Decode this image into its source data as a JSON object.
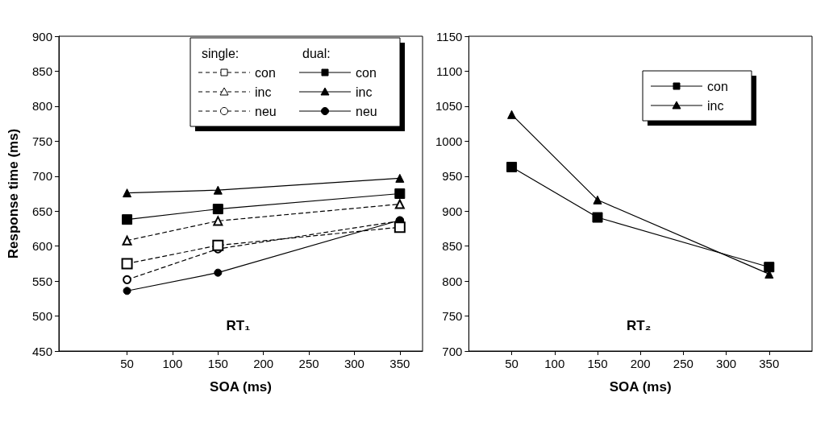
{
  "chart_data": [
    {
      "type": "line",
      "xlabel": "SOA (ms)",
      "ylabel": "Response time (ms)",
      "x": [
        50,
        150,
        350
      ],
      "series": [
        {
          "name": "con",
          "color": "#000000",
          "marker": "square",
          "line_style": "dashed",
          "values": [
            575,
            601,
            627
          ]
        },
        {
          "name": "inc",
          "color": "#000000",
          "marker": "triangle",
          "line_style": "dashed",
          "values": [
            608,
            636,
            660
          ]
        },
        {
          "name": "neu",
          "color": "#000000",
          "marker": "circle",
          "line_style": "dashed",
          "values": [
            552,
            596,
            636
          ]
        },
        {
          "name": "con",
          "color": "#000000",
          "marker": "square",
          "line_style": "solid",
          "values": [
            638,
            653,
            675
          ]
        },
        {
          "name": "inc",
          "color": "#000000",
          "marker": "triangle",
          "line_style": "solid",
          "values": [
            676,
            680,
            697
          ]
        },
        {
          "name": "neu",
          "color": "#000000",
          "marker": "circle",
          "line_style": "solid",
          "values": [
            536,
            562,
            637
          ]
        }
      ],
      "xlim": [
        -25,
        375
      ],
      "xticks": [
        50,
        100,
        150,
        200,
        250,
        300,
        350
      ],
      "ylim": [
        450,
        900
      ],
      "yticks": [
        450,
        500,
        550,
        600,
        650,
        700,
        750,
        800,
        850,
        900
      ],
      "grid": false,
      "legend": "top right",
      "annotations": [
        "RT₁",
        "single:",
        "dual:"
      ]
    },
    {
      "type": "line",
      "xlabel": "SOA (ms)",
      "x": [
        50,
        150,
        350
      ],
      "series": [
        {
          "name": "con",
          "color": "#000000",
          "marker": "square",
          "line_style": "solid",
          "values": [
            963,
            891,
            820
          ]
        },
        {
          "name": "inc",
          "color": "#000000",
          "marker": "triangle",
          "line_style": "solid",
          "values": [
            1038,
            916,
            810
          ]
        }
      ],
      "xlim": [
        0,
        400
      ],
      "xticks": [
        50,
        100,
        150,
        200,
        250,
        300,
        350
      ],
      "ylim": [
        700,
        1150
      ],
      "yticks": [
        700,
        750,
        800,
        850,
        900,
        950,
        1000,
        1050,
        1100,
        1150
      ],
      "grid": false,
      "legend": "top right",
      "annotations": [
        "RT₂"
      ]
    }
  ]
}
